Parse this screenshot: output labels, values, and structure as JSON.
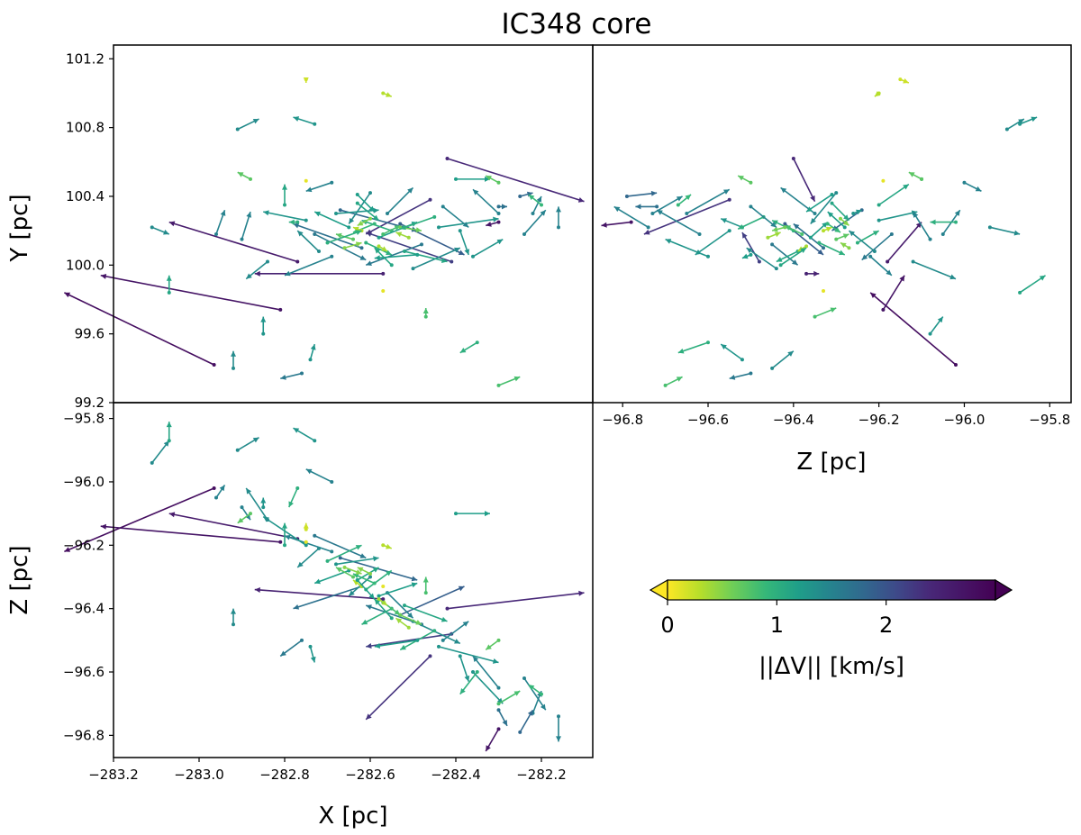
{
  "chart_data": {
    "title": "IC348 core",
    "type": "quiver",
    "panels": [
      {
        "id": "xy",
        "x_var": "X",
        "y_var": "Y",
        "xlim": [
          -283.2,
          -282.08
        ],
        "ylim": [
          99.2,
          101.28
        ],
        "xticks": [],
        "yticks": [
          99.2,
          99.6,
          100.0,
          100.4,
          100.8,
          101.2
        ],
        "xlabel": "",
        "ylabel": "Y [pc]"
      },
      {
        "id": "zy",
        "x_var": "Z",
        "y_var": "Y",
        "xlim": [
          -96.87,
          -95.75
        ],
        "ylim": [
          99.2,
          101.28
        ],
        "xticks": [
          -96.8,
          -96.6,
          -96.4,
          -96.2,
          -96.0,
          -95.8
        ],
        "yticks": [],
        "xlabel": "Z [pc]",
        "ylabel": ""
      },
      {
        "id": "xz",
        "x_var": "X",
        "y_var": "Z",
        "xlim": [
          -283.2,
          -282.08
        ],
        "ylim": [
          -96.87,
          -95.75
        ],
        "xticks": [
          -283.2,
          -283.0,
          -282.8,
          -282.6,
          -282.4,
          -282.2
        ],
        "yticks": [
          -96.8,
          -96.6,
          -96.4,
          -96.2,
          -96.0,
          -95.8
        ],
        "xlabel": "X [pc]",
        "ylabel": "Z [pc]"
      }
    ],
    "tick_labels": {
      "xy_y": [
        "99.2",
        "99.6",
        "100.0",
        "100.4",
        "100.8",
        "101.2"
      ],
      "zy_x": [
        "−96.8",
        "−96.6",
        "−96.4",
        "−96.2",
        "−96.0",
        "−95.8"
      ],
      "xz_x": [
        "−283.2",
        "−283.0",
        "−282.8",
        "−282.6",
        "−282.4",
        "−282.2"
      ],
      "xz_y": [
        "−96.8",
        "−96.6",
        "−96.4",
        "−96.2",
        "−96.0",
        "−95.8"
      ]
    },
    "colorbar": {
      "label": "||ΔV|| [km/s]",
      "colormap": "viridis_r",
      "range": [
        0,
        3
      ],
      "ticks": [
        0,
        1,
        2
      ],
      "tick_labels": [
        "0",
        "1",
        "2"
      ],
      "extend": "both"
    },
    "stars": [
      {
        "x": -282.965,
        "y": 99.42,
        "z": -96.02,
        "vx": -0.35,
        "vy": 0.42,
        "vz": -0.2,
        "dv": 2.8
      },
      {
        "x": -282.81,
        "y": 99.74,
        "z": -96.19,
        "vx": -0.42,
        "vy": 0.2,
        "vz": 0.05,
        "dv": 2.7
      },
      {
        "x": -282.77,
        "y": 100.02,
        "z": -96.18,
        "vx": -0.3,
        "vy": 0.23,
        "vz": 0.08,
        "dv": 2.6
      },
      {
        "x": -282.57,
        "y": 99.95,
        "z": -96.37,
        "vx": -0.3,
        "vy": 0.0,
        "vz": 0.03,
        "dv": 2.5
      },
      {
        "x": -282.42,
        "y": 100.62,
        "z": -96.4,
        "vx": 0.32,
        "vy": -0.25,
        "vz": 0.05,
        "dv": 2.4
      },
      {
        "x": -282.41,
        "y": 100.02,
        "z": -96.48,
        "vx": -0.2,
        "vy": 0.17,
        "vz": -0.04,
        "dv": 2.2
      },
      {
        "x": -282.46,
        "y": 100.38,
        "z": -96.55,
        "vx": -0.15,
        "vy": -0.2,
        "vz": -0.2,
        "dv": 2.3
      },
      {
        "x": -282.53,
        "y": 100.24,
        "z": -96.42,
        "vx": 0.15,
        "vy": -0.18,
        "vz": 0.09,
        "dv": 1.9
      },
      {
        "x": -282.67,
        "y": 100.32,
        "z": -96.24,
        "vx": 0.18,
        "vy": -0.12,
        "vz": -0.07,
        "dv": 1.8
      },
      {
        "x": -282.62,
        "y": 100.1,
        "z": -96.33,
        "vx": -0.16,
        "vy": 0.14,
        "vz": -0.07,
        "dv": 1.7
      },
      {
        "x": -282.73,
        "y": 100.18,
        "z": -96.17,
        "vx": 0.12,
        "vy": -0.15,
        "vz": -0.07,
        "dv": 1.6
      },
      {
        "x": -282.48,
        "y": 100.12,
        "z": -96.45,
        "vx": -0.13,
        "vy": -0.12,
        "vz": 0.06,
        "dv": 1.6
      },
      {
        "x": -282.56,
        "y": 100.3,
        "z": -96.35,
        "vx": 0.06,
        "vy": 0.15,
        "vz": -0.08,
        "dv": 1.5
      },
      {
        "x": -282.69,
        "y": 100.05,
        "z": -96.22,
        "vx": -0.11,
        "vy": -0.11,
        "vz": 0.05,
        "dv": 1.5
      },
      {
        "x": -282.6,
        "y": 100.42,
        "z": -96.3,
        "vx": -0.05,
        "vy": -0.18,
        "vz": -0.06,
        "dv": 1.4
      },
      {
        "x": -282.5,
        "y": 99.98,
        "z": -96.44,
        "vx": 0.11,
        "vy": 0.12,
        "vz": -0.07,
        "dv": 1.4
      },
      {
        "x": -282.44,
        "y": 100.22,
        "z": -96.52,
        "vx": 0.14,
        "vy": 0.05,
        "vz": -0.05,
        "dv": 1.3
      },
      {
        "x": -282.75,
        "y": 100.26,
        "z": -96.2,
        "vx": -0.1,
        "vy": 0.05,
        "vz": 0.09,
        "dv": 1.3
      },
      {
        "x": -282.58,
        "y": 100.16,
        "z": -96.36,
        "vx": 0.09,
        "vy": 0.09,
        "vz": 0.04,
        "dv": 1.2
      },
      {
        "x": -282.65,
        "y": 100.22,
        "z": -96.28,
        "vx": -0.08,
        "vy": 0.09,
        "vz": -0.04,
        "dv": 1.2
      },
      {
        "x": -282.52,
        "y": 100.08,
        "z": -96.39,
        "vx": 0.1,
        "vy": -0.06,
        "vz": -0.05,
        "dv": 1.1
      },
      {
        "x": -282.63,
        "y": 100.36,
        "z": -96.31,
        "vx": 0.05,
        "vy": -0.1,
        "vz": 0.04,
        "dv": 1.1
      },
      {
        "x": -282.55,
        "y": 100.2,
        "z": -96.4,
        "vx": -0.07,
        "vy": 0.06,
        "vz": -0.05,
        "dv": 1.0
      },
      {
        "x": -282.61,
        "y": 100.13,
        "z": -96.34,
        "vx": 0.06,
        "vy": -0.07,
        "vz": 0.06,
        "dv": 1.0
      },
      {
        "x": -282.59,
        "y": 100.24,
        "z": -96.32,
        "vx": -0.05,
        "vy": -0.05,
        "vz": 0.03,
        "dv": 0.9
      },
      {
        "x": -282.57,
        "y": 100.18,
        "z": -96.38,
        "vx": 0.04,
        "vy": 0.05,
        "vz": -0.04,
        "dv": 0.8
      },
      {
        "x": -282.64,
        "y": 100.15,
        "z": -96.3,
        "vx": -0.04,
        "vy": 0.03,
        "vz": 0.03,
        "dv": 0.7
      },
      {
        "x": -282.53,
        "y": 100.22,
        "z": -96.42,
        "vx": 0.05,
        "vy": -0.02,
        "vz": -0.03,
        "dv": 0.6
      },
      {
        "x": -282.6,
        "y": 100.27,
        "z": -96.29,
        "vx": -0.03,
        "vy": -0.04,
        "vz": 0.02,
        "dv": 0.5
      },
      {
        "x": -282.66,
        "y": 100.1,
        "z": -96.27,
        "vx": 0.04,
        "vy": 0.03,
        "vz": -0.02,
        "dv": 0.5
      },
      {
        "x": -282.51,
        "y": 100.16,
        "z": -96.46,
        "vx": -0.03,
        "vy": 0.03,
        "vz": 0.03,
        "dv": 0.4
      },
      {
        "x": -282.58,
        "y": 100.11,
        "z": -96.37,
        "vx": 0.02,
        "vy": -0.03,
        "vz": -0.02,
        "dv": 0.35
      },
      {
        "x": -282.62,
        "y": 100.2,
        "z": -96.33,
        "vx": -0.02,
        "vy": 0.02,
        "vz": 0.02,
        "dv": 0.3
      },
      {
        "x": -282.7,
        "y": 100.13,
        "z": -96.25,
        "vx": 0.08,
        "vy": 0.07,
        "vz": 0.05,
        "dv": 1.0
      },
      {
        "x": -282.45,
        "y": 100.28,
        "z": -96.47,
        "vx": -0.08,
        "vy": -0.07,
        "vz": -0.06,
        "dv": 1.0
      },
      {
        "x": -282.68,
        "y": 100.3,
        "z": -96.26,
        "vx": 0.1,
        "vy": 0.02,
        "vz": 0.02,
        "dv": 1.3
      },
      {
        "x": -282.49,
        "y": 100.06,
        "z": -96.5,
        "vx": -0.1,
        "vy": -0.02,
        "vz": -0.02,
        "dv": 1.2
      },
      {
        "x": -282.72,
        "y": 100.08,
        "z": -96.21,
        "vx": -0.05,
        "vy": 0.12,
        "vz": -0.06,
        "dv": 1.4
      },
      {
        "x": -282.43,
        "y": 100.34,
        "z": -96.5,
        "vx": 0.06,
        "vy": -0.12,
        "vz": 0.06,
        "dv": 1.5
      },
      {
        "x": -282.55,
        "y": 100.0,
        "z": -96.43,
        "vx": -0.04,
        "vy": 0.1,
        "vz": 0.06,
        "dv": 1.1
      },
      {
        "x": -282.63,
        "y": 100.41,
        "z": -96.31,
        "vx": 0.04,
        "vy": -0.1,
        "vz": -0.06,
        "dv": 1.2
      },
      {
        "x": -282.8,
        "y": 100.35,
        "z": -96.2,
        "vx": 0.0,
        "vy": 0.12,
        "vz": 0.07,
        "dv": 1.1
      },
      {
        "x": -282.39,
        "y": 100.2,
        "z": -96.55,
        "vx": 0.02,
        "vy": -0.14,
        "vz": -0.08,
        "dv": 1.3
      },
      {
        "x": -282.84,
        "y": 100.02,
        "z": -96.12,
        "vx": -0.05,
        "vy": -0.1,
        "vz": 0.1,
        "dv": 1.4
      },
      {
        "x": -282.36,
        "y": 100.05,
        "z": -96.6,
        "vx": 0.07,
        "vy": 0.1,
        "vz": -0.1,
        "dv": 1.3
      },
      {
        "x": -282.9,
        "y": 100.15,
        "z": -96.08,
        "vx": 0.02,
        "vy": 0.16,
        "vz": -0.04,
        "dv": 1.5
      },
      {
        "x": -282.3,
        "y": 100.3,
        "z": -96.65,
        "vx": -0.06,
        "vy": 0.14,
        "vz": 0.1,
        "dv": 1.5
      },
      {
        "x": -282.96,
        "y": 100.18,
        "z": -96.05,
        "vx": 0.02,
        "vy": 0.14,
        "vz": 0.04,
        "dv": 1.5
      },
      {
        "x": -282.24,
        "y": 100.18,
        "z": -96.62,
        "vx": 0.05,
        "vy": 0.14,
        "vz": -0.1,
        "dv": 1.5
      },
      {
        "x": -283.11,
        "y": 100.22,
        "z": -95.94,
        "vx": 0.04,
        "vy": -0.04,
        "vz": 0.07,
        "dv": 1.4
      },
      {
        "x": -283.07,
        "y": 99.84,
        "z": -95.87,
        "vx": 0.0,
        "vy": 0.1,
        "vz": 0.06,
        "dv": 1.1
      },
      {
        "x": -282.91,
        "y": 100.79,
        "z": -95.9,
        "vx": 0.05,
        "vy": 0.06,
        "vz": 0.04,
        "dv": 1.4
      },
      {
        "x": -282.73,
        "y": 100.82,
        "z": -95.87,
        "vx": -0.05,
        "vy": 0.04,
        "vz": 0.04,
        "dv": 1.3
      },
      {
        "x": -282.22,
        "y": 100.3,
        "z": -96.73,
        "vx": 0.02,
        "vy": 0.1,
        "vz": 0.07,
        "dv": 1.5
      },
      {
        "x": -282.16,
        "y": 100.22,
        "z": -96.74,
        "vx": 0.0,
        "vy": 0.12,
        "vz": -0.08,
        "dv": 1.5
      },
      {
        "x": -282.85,
        "y": 99.6,
        "z": -96.08,
        "vx": 0.0,
        "vy": 0.1,
        "vz": 0.03,
        "dv": 1.3
      },
      {
        "x": -282.76,
        "y": 99.37,
        "z": -96.5,
        "vx": -0.05,
        "vy": -0.03,
        "vz": -0.05,
        "dv": 1.6
      },
      {
        "x": -282.74,
        "y": 99.45,
        "z": -96.52,
        "vx": 0.01,
        "vy": 0.09,
        "vz": -0.05,
        "dv": 1.3
      },
      {
        "x": -282.92,
        "y": 99.4,
        "z": -96.45,
        "vx": 0.0,
        "vy": 0.1,
        "vz": 0.05,
        "dv": 1.4
      },
      {
        "x": -282.35,
        "y": 99.55,
        "z": -96.6,
        "vx": -0.04,
        "vy": -0.06,
        "vz": -0.07,
        "dv": 1.0
      },
      {
        "x": -282.47,
        "y": 99.7,
        "z": -96.35,
        "vx": 0.0,
        "vy": 0.05,
        "vz": 0.05,
        "dv": 0.8
      },
      {
        "x": -282.4,
        "y": 100.5,
        "z": -96.1,
        "vx": 0.08,
        "vy": 0.0,
        "vz": 0.0,
        "dv": 1.2
      },
      {
        "x": -282.69,
        "y": 100.48,
        "z": -96.0,
        "vx": -0.06,
        "vy": -0.05,
        "vz": 0.04,
        "dv": 1.5
      },
      {
        "x": -282.75,
        "y": 101.08,
        "z": -96.15,
        "vx": 0.0,
        "vy": -0.02,
        "vz": 0.02,
        "dv": 0.2
      },
      {
        "x": -282.57,
        "y": 101.0,
        "z": -96.2,
        "vx": 0.02,
        "vy": -0.02,
        "vz": -0.01,
        "dv": 0.3
      },
      {
        "x": -282.57,
        "y": 99.85,
        "z": -96.33,
        "vx": 0.0,
        "vy": 0.0,
        "vz": 0.0,
        "dv": 0.1
      },
      {
        "x": -282.75,
        "y": 100.49,
        "z": -96.19,
        "vx": 0.0,
        "vy": 0.0,
        "vz": 0.0,
        "dv": 0.1
      },
      {
        "x": -282.3,
        "y": 99.3,
        "z": -96.7,
        "vx": 0.05,
        "vy": 0.05,
        "vz": 0.04,
        "dv": 0.8
      },
      {
        "x": -282.3,
        "y": 100.25,
        "z": -96.78,
        "vx": -0.03,
        "vy": -0.02,
        "vz": -0.07,
        "dv": 2.7
      },
      {
        "x": -282.25,
        "y": 100.4,
        "z": -96.79,
        "vx": 0.03,
        "vy": 0.02,
        "vz": 0.07,
        "dv": 1.8
      },
      {
        "x": -282.2,
        "y": 100.35,
        "z": -96.67,
        "vx": -0.03,
        "vy": 0.06,
        "vz": 0.03,
        "dv": 0.9
      },
      {
        "x": -282.3,
        "y": 100.34,
        "z": -96.72,
        "vx": 0.02,
        "vy": 0.0,
        "vz": -0.05,
        "dv": 1.7
      },
      {
        "x": -282.77,
        "y": 100.25,
        "z": -96.02,
        "vx": -0.02,
        "vy": 0.0,
        "vz": -0.06,
        "dv": 1.0
      },
      {
        "x": -282.88,
        "y": 100.5,
        "z": -96.1,
        "vx": -0.03,
        "vy": 0.04,
        "vz": -0.03,
        "dv": 0.7
      },
      {
        "x": -282.3,
        "y": 100.48,
        "z": -96.5,
        "vx": -0.03,
        "vy": 0.04,
        "vz": -0.03,
        "dv": 0.7
      }
    ]
  }
}
